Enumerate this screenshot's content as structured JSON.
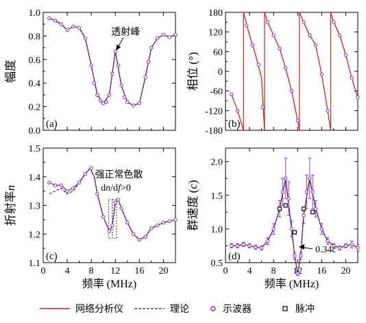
{
  "colors": {
    "network_analyzer": "#cc2222",
    "theory": "#1a1a8c",
    "oscilloscope": "#7b2fd0",
    "pulse": "#000000"
  },
  "legend": [
    {
      "label": "网络分析仪",
      "style": "solid-line"
    },
    {
      "label": "理论",
      "style": "dashed-line"
    },
    {
      "label": "示波器",
      "style": "open-circle"
    },
    {
      "label": "脉冲",
      "style": "open-square"
    }
  ],
  "chart_data": [
    {
      "panel": "(a)",
      "type": "line",
      "ylabel": "幅度",
      "xlabel": "",
      "xlim": [
        0,
        22
      ],
      "ylim": [
        0.0,
        1.0
      ],
      "xticks": [
        0,
        4,
        8,
        12,
        16,
        20
      ],
      "xtick_labels": [
        "",
        "",
        "",
        "",
        "",
        ""
      ],
      "yticks": [
        0.0,
        0.2,
        0.4,
        0.6,
        0.8,
        1.0
      ],
      "ytick_labels": [
        "0.0",
        "0.2",
        "0.4",
        "0.6",
        "0.8",
        "1.0"
      ],
      "annotation": {
        "text": "透射峰",
        "x": 12,
        "y": 0.67
      },
      "series": [
        {
          "key": "network_analyzer",
          "x": [
            1,
            2,
            3,
            4,
            5,
            6,
            7,
            8,
            9,
            10,
            11,
            12,
            13,
            14,
            15,
            16,
            17,
            18,
            19,
            20,
            21,
            22
          ],
          "y": [
            0.95,
            0.93,
            0.9,
            0.85,
            0.88,
            0.87,
            0.78,
            0.55,
            0.3,
            0.23,
            0.3,
            0.67,
            0.38,
            0.24,
            0.21,
            0.23,
            0.45,
            0.7,
            0.78,
            0.81,
            0.79,
            0.81
          ]
        },
        {
          "key": "theory",
          "x": [
            1,
            2,
            3,
            4,
            5,
            6,
            7,
            8,
            9,
            10,
            11,
            12,
            13,
            14,
            15,
            16,
            17,
            18,
            19,
            20,
            21,
            22
          ],
          "y": [
            0.95,
            0.93,
            0.9,
            0.85,
            0.88,
            0.87,
            0.78,
            0.55,
            0.3,
            0.23,
            0.3,
            0.67,
            0.38,
            0.24,
            0.21,
            0.23,
            0.45,
            0.7,
            0.78,
            0.81,
            0.79,
            0.81
          ]
        },
        {
          "key": "oscilloscope",
          "x": [
            1,
            2,
            3,
            4,
            5,
            6,
            7,
            8,
            8.5,
            9,
            9.5,
            10,
            10.5,
            11,
            11.5,
            12,
            12.5,
            13,
            13.5,
            14,
            15,
            16,
            17,
            17.5,
            18,
            19,
            20,
            21,
            22
          ],
          "y": [
            0.95,
            0.93,
            0.9,
            0.85,
            0.88,
            0.87,
            0.78,
            0.55,
            0.4,
            0.3,
            0.25,
            0.23,
            0.24,
            0.3,
            0.48,
            0.67,
            0.55,
            0.38,
            0.28,
            0.24,
            0.21,
            0.23,
            0.45,
            0.58,
            0.7,
            0.78,
            0.81,
            0.79,
            0.81
          ]
        }
      ]
    },
    {
      "panel": "(b)",
      "type": "line",
      "ylabel": "相位 (°)",
      "xlabel": "",
      "xlim": [
        0,
        22
      ],
      "ylim": [
        -180,
        180
      ],
      "xticks": [
        0,
        4,
        8,
        12,
        16,
        20
      ],
      "xtick_labels": [
        "",
        "",
        "",
        "",
        "",
        ""
      ],
      "yticks": [
        -180,
        -120,
        -60,
        0,
        60,
        120,
        180
      ],
      "ytick_labels": [
        "-180",
        "-120",
        "-60",
        "0",
        "60",
        "120",
        "180"
      ],
      "wrap_x": [
        3,
        6.5,
        12.3,
        17.5
      ],
      "series": [
        {
          "key": "network_analyzer",
          "x": [
            1,
            2,
            3,
            3,
            4,
            5,
            6,
            6.5,
            6.5,
            7,
            8,
            9,
            10,
            11,
            12,
            12.3,
            12.3,
            13,
            14,
            15,
            16,
            17,
            17.5,
            17.5,
            18,
            19,
            20,
            21,
            22
          ],
          "y": [
            -70,
            -120,
            -180,
            180,
            110,
            50,
            -20,
            -180,
            180,
            150,
            110,
            70,
            10,
            -60,
            -150,
            -180,
            180,
            150,
            110,
            80,
            -10,
            -120,
            -180,
            180,
            150,
            110,
            50,
            -20,
            -80
          ]
        },
        {
          "key": "oscilloscope",
          "x": [
            1,
            2,
            3.5,
            4.5,
            5.5,
            6.2,
            7,
            8,
            9,
            10,
            11,
            12,
            13,
            14,
            15,
            16,
            17,
            18,
            19,
            20,
            21,
            22
          ],
          "y": [
            -70,
            -120,
            140,
            80,
            20,
            -110,
            150,
            110,
            70,
            10,
            -60,
            -150,
            150,
            110,
            80,
            -10,
            -120,
            150,
            110,
            50,
            -20,
            -80
          ]
        }
      ]
    },
    {
      "panel": "(c)",
      "type": "line",
      "ylabel": "折射率",
      "ylabel_italic": "n",
      "xlabel": "频率 (MHz)",
      "xlim": [
        0,
        22
      ],
      "ylim": [
        1.1,
        1.5
      ],
      "xticks": [
        0,
        4,
        8,
        12,
        16,
        20
      ],
      "xtick_labels": [
        "0",
        "4",
        "8",
        "12",
        "16",
        "20"
      ],
      "yticks": [
        1.1,
        1.2,
        1.3,
        1.4,
        1.5
      ],
      "ytick_labels": [
        "1.1",
        "1.2",
        "1.3",
        "1.4",
        "1.5"
      ],
      "annotation": {
        "title": "强正常色散",
        "expr_a": "d",
        "expr_n": "n",
        "expr_b": "/d",
        "expr_f": "f",
        "expr_c": ">0"
      },
      "dashed_boxes": [
        {
          "x0": 10.9,
          "x1": 11.5,
          "y0": 1.185,
          "y1": 1.32
        },
        {
          "x0": 11.5,
          "x1": 12.2,
          "y0": 1.185,
          "y1": 1.32
        }
      ],
      "series": [
        {
          "key": "network_analyzer",
          "x": [
            1,
            2,
            3,
            4,
            5,
            6,
            7,
            7.8,
            8.5,
            9,
            10,
            11,
            11.5,
            12,
            12.5,
            13,
            14,
            15,
            16,
            17,
            18,
            19,
            20,
            21,
            22
          ],
          "y": [
            1.38,
            1.37,
            1.37,
            1.35,
            1.36,
            1.38,
            1.41,
            1.43,
            1.4,
            1.34,
            1.26,
            1.21,
            1.23,
            1.31,
            1.32,
            1.29,
            1.24,
            1.2,
            1.18,
            1.19,
            1.22,
            1.23,
            1.24,
            1.245,
            1.25
          ]
        },
        {
          "key": "theory",
          "x": [
            1,
            2,
            3,
            4,
            5,
            6,
            7,
            7.8,
            8.5,
            9,
            10,
            11,
            11.5,
            12,
            12.5,
            13,
            14,
            15,
            16,
            17,
            18,
            19,
            20,
            21,
            22
          ],
          "y": [
            1.34,
            1.35,
            1.36,
            1.34,
            1.35,
            1.38,
            1.41,
            1.43,
            1.4,
            1.34,
            1.26,
            1.21,
            1.23,
            1.31,
            1.32,
            1.29,
            1.24,
            1.2,
            1.18,
            1.19,
            1.22,
            1.23,
            1.24,
            1.245,
            1.25
          ]
        },
        {
          "key": "oscilloscope",
          "x": [
            1,
            2,
            3,
            4,
            5,
            6,
            7,
            8,
            9,
            10,
            11,
            11.5,
            12,
            12.5,
            13,
            14,
            15,
            16,
            17,
            18,
            19,
            20,
            21,
            22
          ],
          "y": [
            1.38,
            1.37,
            1.37,
            1.35,
            1.36,
            1.38,
            1.41,
            1.43,
            1.34,
            1.26,
            1.21,
            1.23,
            1.31,
            1.32,
            1.29,
            1.24,
            1.2,
            1.18,
            1.19,
            1.22,
            1.23,
            1.24,
            1.245,
            1.25
          ]
        }
      ]
    },
    {
      "panel": "(d)",
      "type": "line",
      "ylabel": "群速度 (",
      "ylabel_italic": "c",
      "ylabel_end": ")",
      "xlabel": "频率 (MHz)",
      "xlim": [
        0,
        22
      ],
      "ylim": [
        0.5,
        2.2
      ],
      "xticks": [
        0,
        4,
        8,
        12,
        16,
        20
      ],
      "xtick_labels": [
        "0",
        "4",
        "8",
        "12",
        "16",
        "20"
      ],
      "yticks": [
        0.5,
        1.0,
        1.5,
        2.0
      ],
      "ytick_labels": [
        "0.5",
        "1.0",
        "1.5",
        "2.0"
      ],
      "annotation": {
        "text_num": "0.34",
        "text_unit": "c",
        "x": 12.2,
        "y": 0.34
      },
      "series": [
        {
          "key": "network_analyzer",
          "x": [
            1,
            2,
            3,
            4,
            5,
            6,
            7,
            8,
            9,
            10,
            11,
            11.5,
            12,
            12.5,
            13,
            14,
            15,
            16,
            17,
            18,
            19,
            20,
            21,
            22
          ],
          "y": [
            0.75,
            0.75,
            0.77,
            0.75,
            0.73,
            0.72,
            0.82,
            1.0,
            1.3,
            1.75,
            1.0,
            0.6,
            0.34,
            0.6,
            1.2,
            1.75,
            1.3,
            1.0,
            0.82,
            0.75,
            0.72,
            0.75,
            0.77,
            0.72
          ]
        },
        {
          "key": "theory",
          "x": [
            1,
            2,
            3,
            4,
            5,
            6,
            7,
            8,
            9,
            10,
            11,
            11.5,
            12,
            12.5,
            13,
            14,
            15,
            16,
            17,
            18,
            19,
            20,
            21,
            22
          ],
          "y": [
            0.75,
            0.75,
            0.77,
            0.75,
            0.73,
            0.72,
            0.82,
            1.0,
            1.3,
            1.75,
            1.0,
            0.6,
            0.34,
            0.6,
            1.2,
            1.75,
            1.3,
            1.0,
            0.82,
            0.75,
            0.72,
            0.75,
            0.77,
            0.72
          ]
        },
        {
          "key": "oscilloscope",
          "x": [
            1,
            2,
            3,
            4,
            5,
            6,
            7,
            8,
            9,
            9.5,
            10,
            10.5,
            11,
            11.5,
            12,
            12.5,
            13,
            13.5,
            14,
            14.5,
            15,
            16,
            17,
            18,
            19,
            20,
            21,
            22
          ],
          "y": [
            0.75,
            0.75,
            0.77,
            0.75,
            0.73,
            0.72,
            0.82,
            1.0,
            1.3,
            1.55,
            1.75,
            1.45,
            1.0,
            0.6,
            0.34,
            0.6,
            1.2,
            1.55,
            1.75,
            1.55,
            1.3,
            1.0,
            0.82,
            0.75,
            0.72,
            0.75,
            0.77,
            0.72
          ],
          "err": [
            0.03,
            0.03,
            0.03,
            0.03,
            0.03,
            0.03,
            0.05,
            0.08,
            0.12,
            0.2,
            0.3,
            0.25,
            0.12,
            0.05,
            0.03,
            0.05,
            0.12,
            0.25,
            0.3,
            0.25,
            0.12,
            0.08,
            0.05,
            0.03,
            0.03,
            0.03,
            0.05,
            0.05
          ]
        },
        {
          "key": "pulse",
          "x": [
            9,
            10,
            11.5,
            13,
            14.5
          ],
          "y": [
            1.3,
            1.35,
            0.95,
            1.3,
            1.25
          ]
        }
      ]
    }
  ]
}
